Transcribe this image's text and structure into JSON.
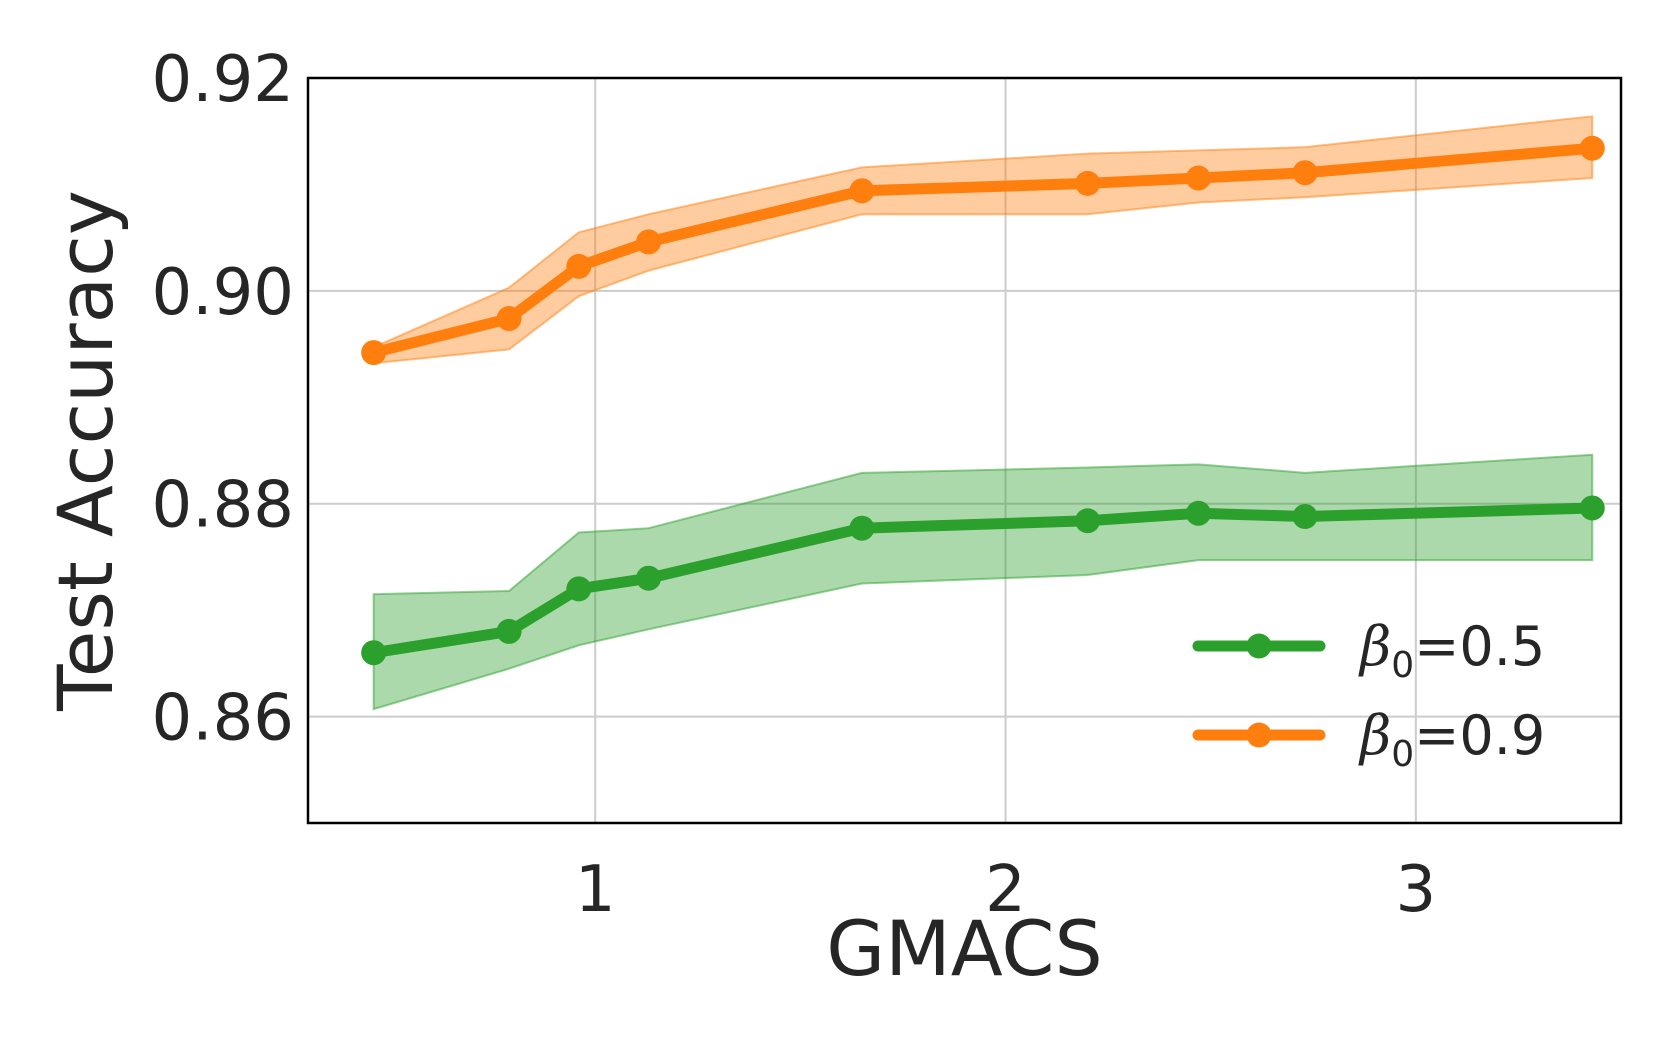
{
  "chart_data": {
    "type": "line",
    "xlabel": "GMACS",
    "ylabel": "Test Accuracy",
    "xlim": [
      0.3,
      3.5
    ],
    "ylim": [
      0.85,
      0.92
    ],
    "xticks": [
      1,
      2,
      3
    ],
    "xtick_labels": [
      "1",
      "2",
      "3"
    ],
    "yticks": [
      0.86,
      0.88,
      0.9,
      0.92
    ],
    "ytick_labels": [
      "0.86",
      "0.88",
      "0.90",
      "0.92"
    ],
    "grid": true,
    "legend_position": "lower-right",
    "x": [
      0.46,
      0.79,
      0.96,
      1.13,
      1.65,
      2.2,
      2.47,
      2.73,
      3.43
    ],
    "series": [
      {
        "name": "β0=0.5",
        "legend_symbol": "β",
        "legend_subscript": "0",
        "legend_value": "=0.5",
        "color": "#2ca02c",
        "values": [
          0.866,
          0.868,
          0.872,
          0.873,
          0.8777,
          0.8784,
          0.8791,
          0.8788,
          0.8796
        ],
        "lower": [
          0.8607,
          0.8645,
          0.8667,
          0.8682,
          0.8725,
          0.8733,
          0.8747,
          0.8747,
          0.8747
        ],
        "upper": [
          0.8715,
          0.8718,
          0.8773,
          0.8777,
          0.8829,
          0.8834,
          0.8837,
          0.8829,
          0.8846
        ]
      },
      {
        "name": "β0=0.9",
        "legend_symbol": "β",
        "legend_subscript": "0",
        "legend_value": "=0.9",
        "color": "#ff7f0e",
        "values": [
          0.8942,
          0.8974,
          0.9023,
          0.9046,
          0.9094,
          0.9101,
          0.9106,
          0.9111,
          0.9134
        ],
        "lower": [
          0.8932,
          0.8945,
          0.8995,
          0.9019,
          0.9072,
          0.9072,
          0.9083,
          0.9088,
          0.9106
        ],
        "upper": [
          0.8947,
          0.9003,
          0.9055,
          0.9072,
          0.9116,
          0.9129,
          0.9132,
          0.9135,
          0.9164
        ]
      }
    ]
  }
}
